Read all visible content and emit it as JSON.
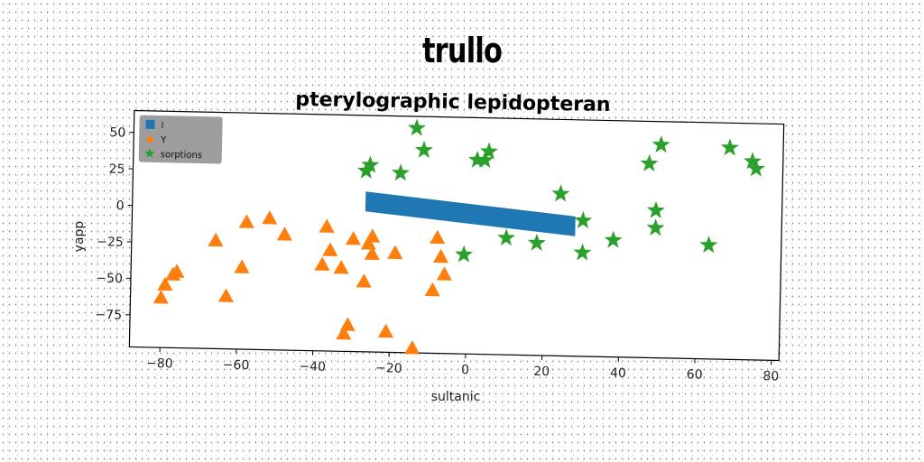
{
  "suptitle": "trullo",
  "chart_data": {
    "type": "scatter",
    "title": "pterylographic lepidopteran",
    "xlabel": "sultanic",
    "ylabel": "yapp",
    "xlim": [
      -88,
      82
    ],
    "ylim": [
      -97,
      65
    ],
    "xticks": [
      -80,
      -60,
      -40,
      -20,
      0,
      20,
      40,
      60,
      80
    ],
    "yticks": [
      50,
      25,
      0,
      -25,
      -50,
      -75
    ],
    "grid": false,
    "legend_position": "top-left",
    "series": [
      {
        "name": "l",
        "marker": "band",
        "color": "#1f77b4",
        "x": [
          -27,
          28
        ],
        "y": [
          6,
          -8
        ]
      },
      {
        "name": "Y",
        "marker": "triangle",
        "color": "#ff7f0e",
        "x": [
          -80,
          -79,
          -77,
          -76,
          -66,
          -63,
          -59,
          -58,
          -52,
          -48,
          -38,
          -37,
          -36,
          -33,
          -32,
          -31,
          -30,
          -27,
          -26,
          -25,
          -25,
          -21,
          -19,
          -14,
          -9,
          -8,
          -7,
          -6
        ],
        "y": [
          -63,
          -54,
          -47,
          -45,
          -23,
          -61,
          -41,
          -10,
          -7,
          -18,
          -38,
          -12,
          -28,
          -40,
          -85,
          -79,
          -20,
          -49,
          -23,
          -18,
          -30,
          -83,
          -29,
          -94,
          -54,
          -18,
          -31,
          -43
        ]
      },
      {
        "name": "sorptions",
        "marker": "star",
        "color": "#2ca02c",
        "x": [
          -27,
          -26,
          -18,
          -14,
          -12,
          -1,
          2,
          4,
          5,
          10,
          18,
          24,
          30,
          30,
          38,
          47,
          49,
          49,
          50,
          63,
          68,
          74,
          75
        ],
        "y": [
          27,
          31,
          26,
          57,
          42,
          -29,
          36,
          36,
          42,
          -17,
          -20,
          14,
          -4,
          -26,
          -17,
          36,
          4,
          -8,
          49,
          -19,
          48,
          39,
          34
        ]
      }
    ]
  }
}
